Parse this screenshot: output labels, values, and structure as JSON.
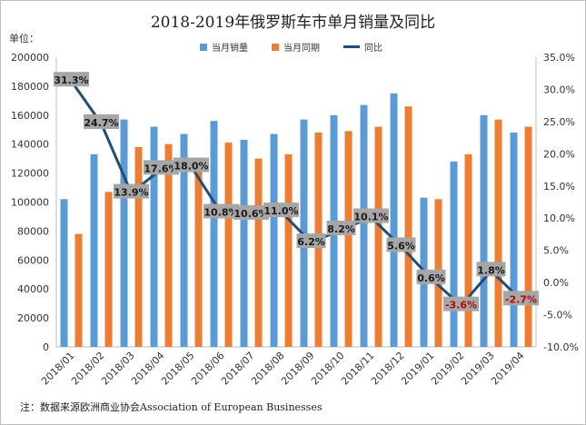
{
  "chart_data": {
    "type": "bar",
    "title": "2018-2019年俄罗斯车市单月销量及同比",
    "unit_label": "单位：",
    "note": "注：数据来源欧洲商业协会Association of European Businesses",
    "categories": [
      "2018/01",
      "2018/02",
      "2018/03",
      "2018/04",
      "2018/05",
      "2018/06",
      "2018/07",
      "2018/08",
      "2018/09",
      "2018/10",
      "2018/11",
      "2018/12",
      "2019/01",
      "2019/02",
      "2019/03",
      "2019/04"
    ],
    "series": [
      {
        "name": "当月销量",
        "kind": "bar",
        "axis": "left",
        "color": "#5b9bd5",
        "values": [
          102000,
          133000,
          157000,
          152000,
          147000,
          156000,
          143000,
          147000,
          157000,
          160000,
          167000,
          175000,
          103000,
          128000,
          160000,
          148000
        ]
      },
      {
        "name": "当月同期",
        "kind": "bar",
        "axis": "left",
        "color": "#ed7d31",
        "values": [
          78000,
          107000,
          138000,
          140000,
          125000,
          141000,
          130000,
          133000,
          148000,
          149000,
          152000,
          166000,
          102000,
          133000,
          157000,
          152000
        ]
      },
      {
        "name": "同比",
        "kind": "line",
        "axis": "right",
        "color": "#1f4e79",
        "values": [
          31.3,
          24.7,
          13.9,
          17.6,
          18.0,
          10.8,
          10.6,
          11.0,
          6.2,
          8.2,
          10.1,
          5.6,
          0.6,
          -3.6,
          1.8,
          -2.7
        ],
        "labels": [
          "31.3%",
          "24.7%",
          "13.9%",
          "17.6%",
          "18.0%",
          "10.8%",
          "10.6%",
          "11.0%",
          "6.2%",
          "8.2%",
          "10.1%",
          "5.6%",
          "0.6%",
          "-3.6%",
          "1.8%",
          "-2.7%"
        ]
      }
    ],
    "y_left": {
      "min": 0,
      "max": 200000,
      "ticks": [
        "0",
        "20000",
        "40000",
        "60000",
        "80000",
        "100000",
        "120000",
        "140000",
        "160000",
        "180000",
        "200000"
      ]
    },
    "y_right": {
      "min": -10,
      "max": 35,
      "ticks": [
        "-10.0%",
        "-5.0%",
        "0.0%",
        "5.0%",
        "10.0%",
        "15.0%",
        "20.0%",
        "25.0%",
        "30.0%",
        "35.0%"
      ]
    },
    "grid": false,
    "legend_position": "top",
    "negative_label_color": "#c00000",
    "label_box_color": "#a6a6a6"
  }
}
